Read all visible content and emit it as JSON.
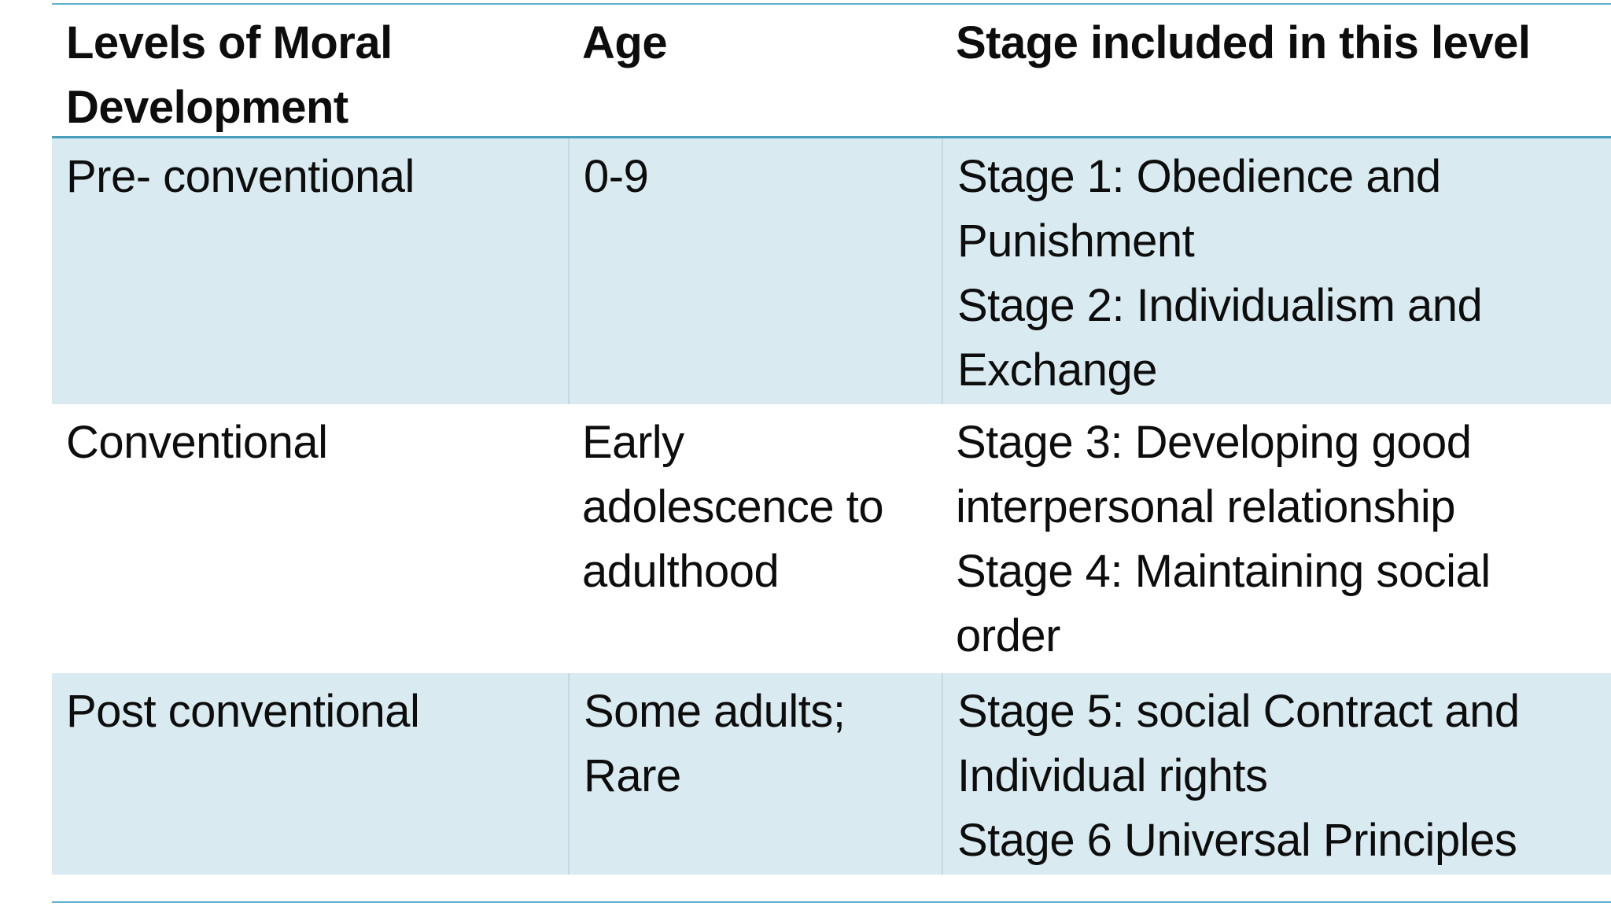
{
  "colors": {
    "band_fill": "#d9eaf1",
    "rule_strong": "#4c9fbc",
    "rule_top": "#63afd0",
    "divider": "#c3d9e3",
    "text": "#0d0d0d"
  },
  "table": {
    "header": {
      "levels": "Levels of Moral Development",
      "age": "Age",
      "stages": "Stage included in this level"
    },
    "rows": [
      {
        "level": "Pre- conventional",
        "age": "0-9",
        "stages": [
          "Stage 1: Obedience and Punishment",
          "Stage 2: Individualism and Exchange"
        ]
      },
      {
        "level": "Conventional",
        "age": "Early adolescence to adulthood",
        "stages": [
          "Stage 3: Developing good interpersonal relationship",
          "Stage 4: Maintaining social order"
        ]
      },
      {
        "level": "Post conventional",
        "age": "Some adults; Rare",
        "stages": [
          "Stage 5: social Contract and Individual rights",
          "Stage 6 Universal Principles"
        ]
      }
    ]
  }
}
